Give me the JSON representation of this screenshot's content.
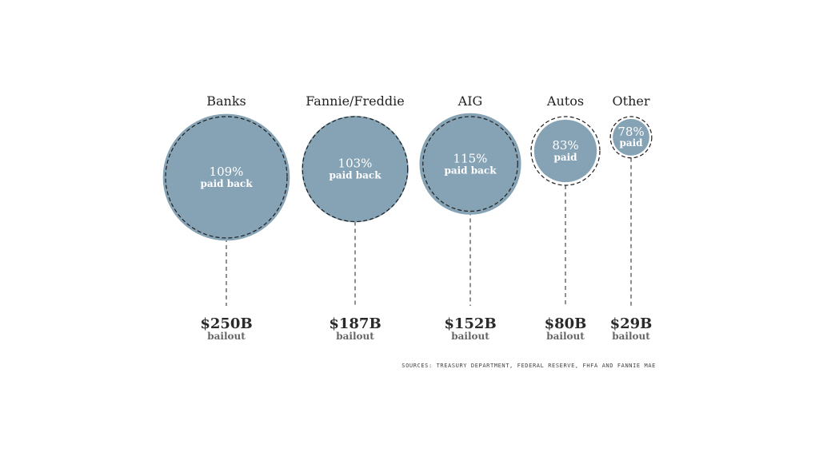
{
  "chart_data": {
    "type": "bubble",
    "fill_color": "#86a3b5",
    "ring_color": "#1f1f1f",
    "categories": [
      {
        "name": "Banks",
        "bailout_billions": 250,
        "amount_label": "$250B",
        "amount_sub": "bailout",
        "pct_label": "109%",
        "pct_sub": "paid back",
        "paid_pct": 109
      },
      {
        "name": "Fannie/Freddie",
        "bailout_billions": 187,
        "amount_label": "$187B",
        "amount_sub": "bailout",
        "pct_label": "103%",
        "pct_sub": "paid back",
        "paid_pct": 103
      },
      {
        "name": "AIG",
        "bailout_billions": 152,
        "amount_label": "$152B",
        "amount_sub": "bailout",
        "pct_label": "115%",
        "pct_sub": "paid back",
        "paid_pct": 115
      },
      {
        "name": "Autos",
        "bailout_billions": 80,
        "amount_label": "$80B",
        "amount_sub": "bailout",
        "pct_label": "83%",
        "pct_sub": "paid",
        "paid_pct": 83
      },
      {
        "name": "Other",
        "bailout_billions": 29,
        "amount_label": "$29B",
        "amount_sub": "bailout",
        "pct_label": "78%",
        "pct_sub": "paid",
        "paid_pct": 78
      }
    ]
  },
  "source_note": "SOURCES: TREASURY DEPARTMENT, FEDERAL RESERVE, FHFA AND FANNIE MAE"
}
